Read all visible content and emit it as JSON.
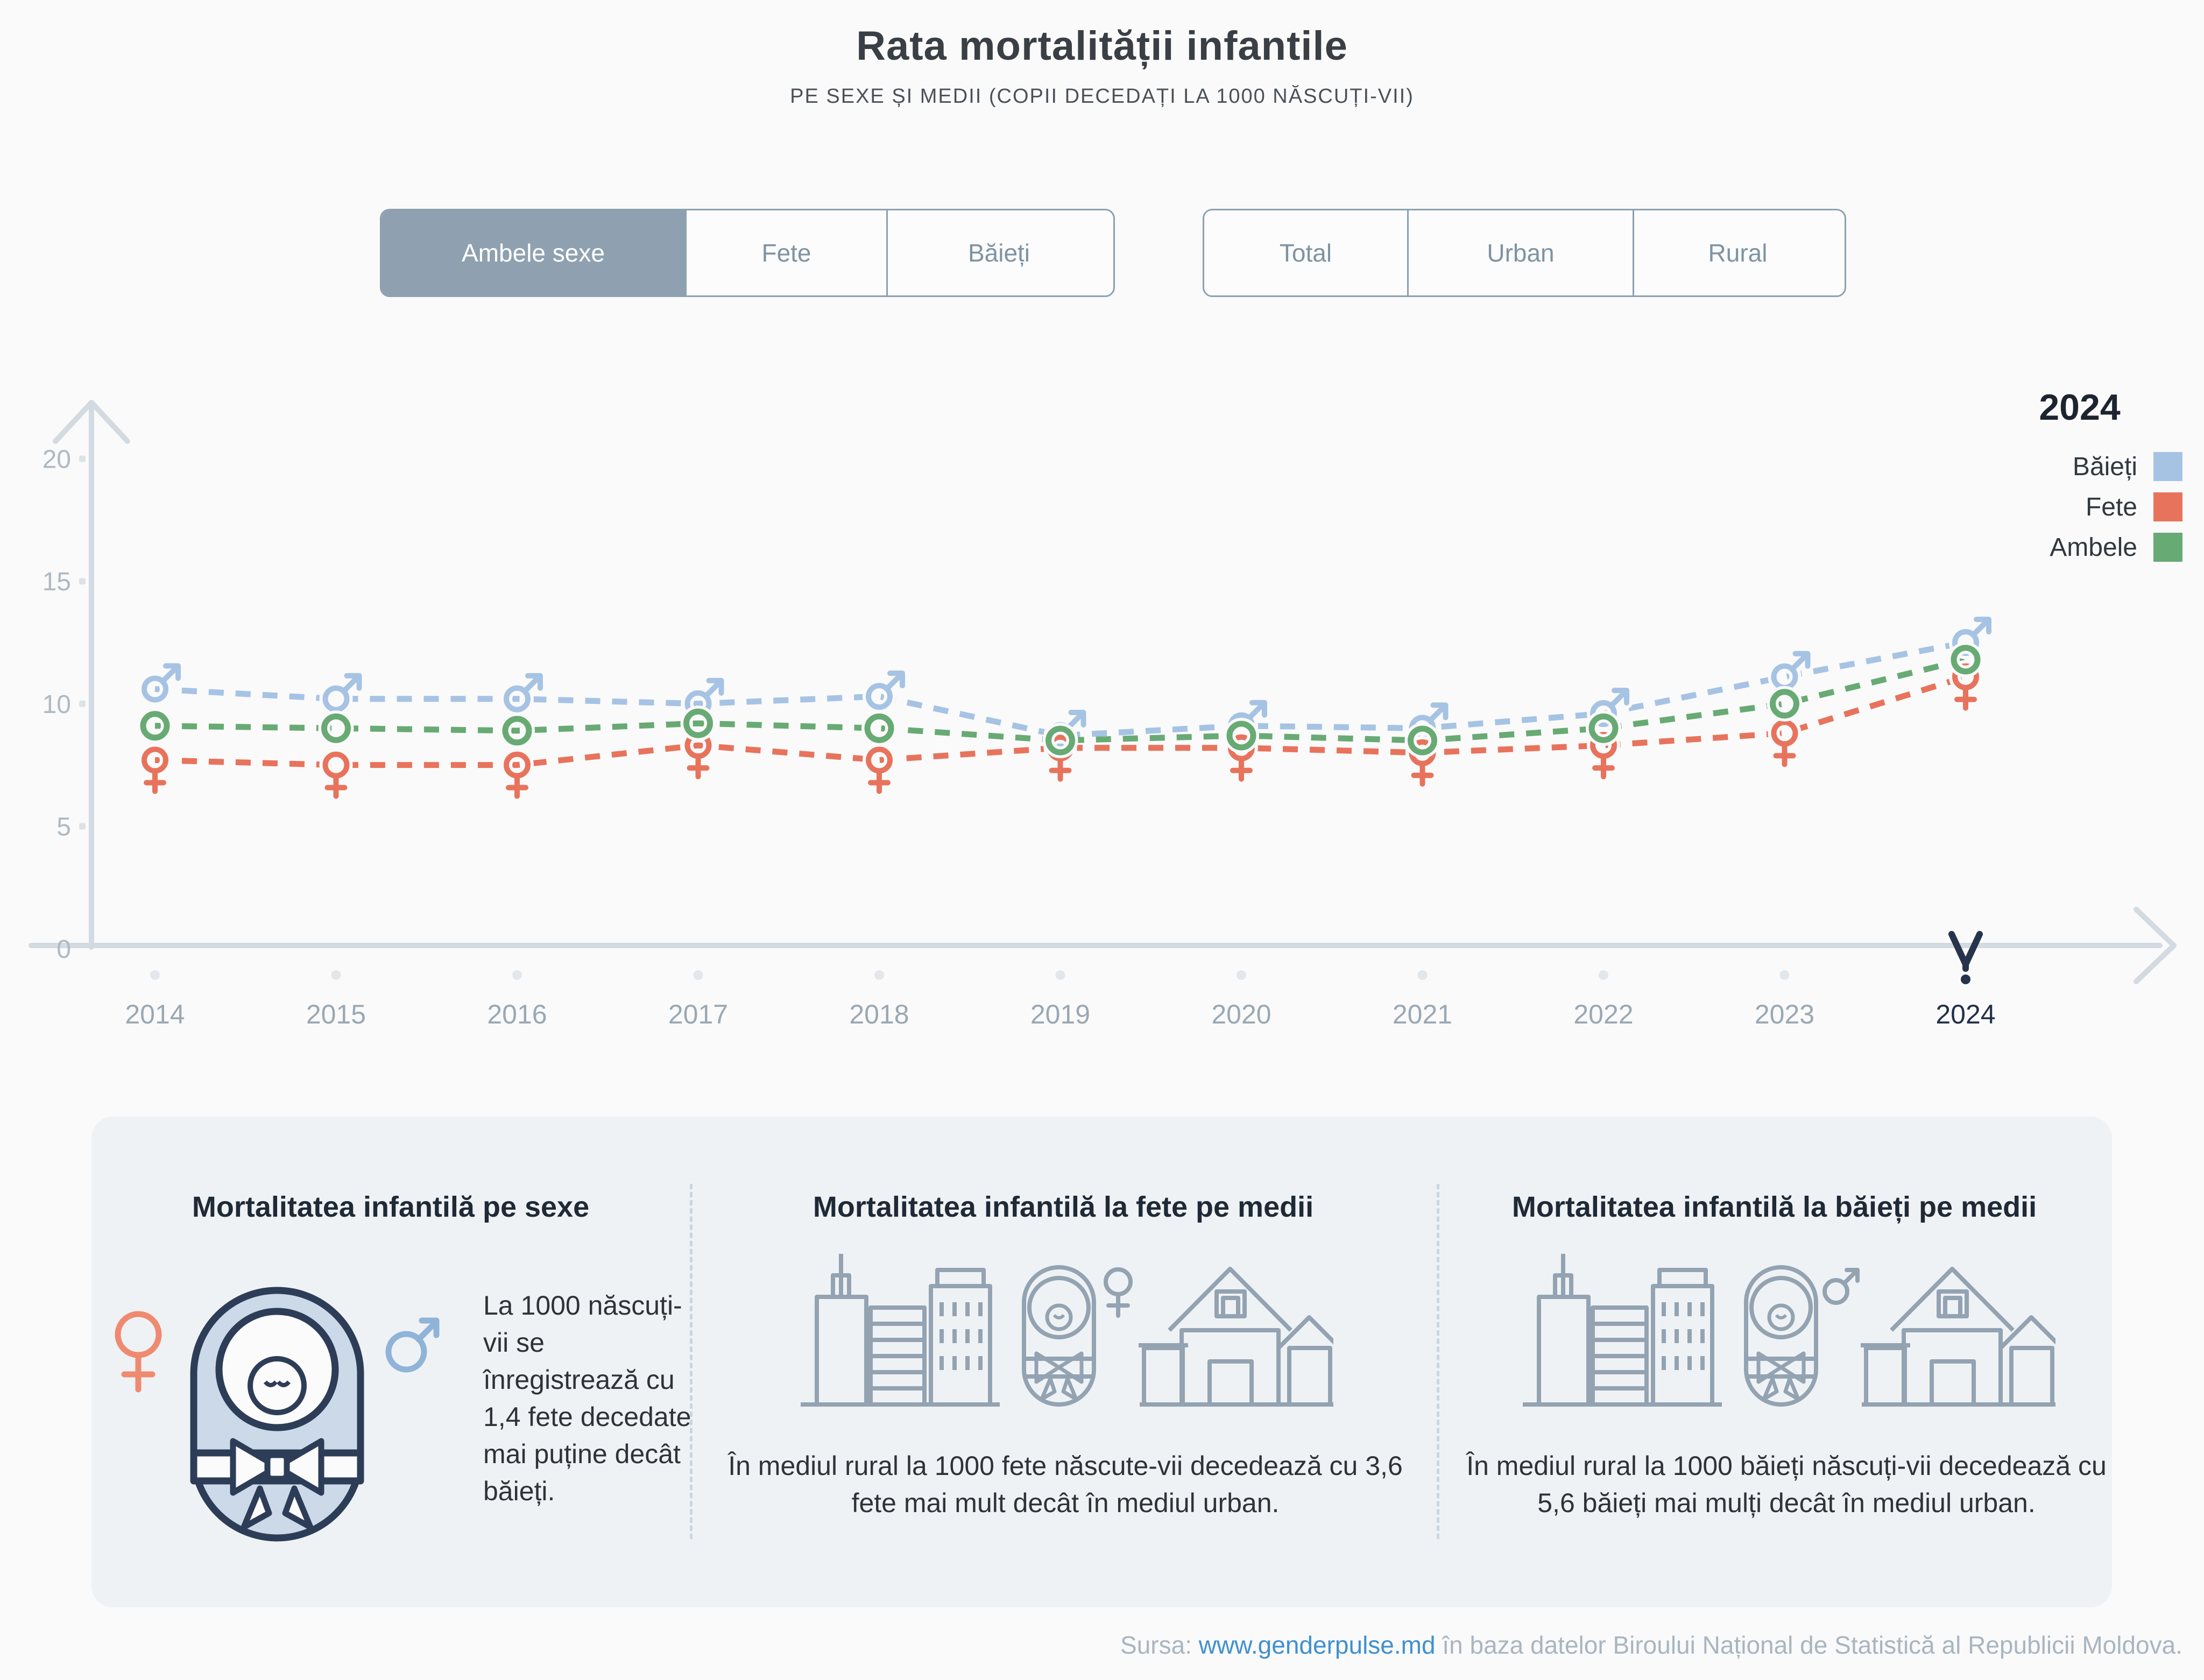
{
  "title": "Rata mortalității infantile",
  "subtitle": "PE SEXE ȘI MEDII (COPII DECEDAȚI LA 1000 NĂSCUȚI-VII)",
  "filters": {
    "sex": {
      "options": [
        "Ambele sexe",
        "Fete",
        "Băieți"
      ],
      "selected": "Ambele sexe"
    },
    "medium": {
      "options": [
        "Total",
        "Urban",
        "Rural"
      ],
      "selected": ""
    }
  },
  "legend": {
    "year": "2024",
    "items": [
      {
        "label": "Băieți",
        "color": "#a6c3e4"
      },
      {
        "label": "Fete",
        "color": "#e8735c"
      },
      {
        "label": "Ambele",
        "color": "#68aa74"
      }
    ]
  },
  "chart_data": {
    "type": "line",
    "title": "Rata mortalității infantile",
    "xlabel": "",
    "ylabel": "copii decedați la 1000 născuți-vii",
    "x": [
      2014,
      2015,
      2016,
      2017,
      2018,
      2019,
      2020,
      2021,
      2022,
      2023,
      2024
    ],
    "series": [
      {
        "name": "Băieți",
        "marker": "male",
        "color": "#a6c3e4",
        "values": [
          10.6,
          10.2,
          10.2,
          10.0,
          10.3,
          8.7,
          9.1,
          9.0,
          9.6,
          11.1,
          12.5
        ]
      },
      {
        "name": "Fete",
        "marker": "female",
        "color": "#e8735c",
        "values": [
          7.7,
          7.5,
          7.5,
          8.3,
          7.7,
          8.2,
          8.2,
          8.0,
          8.3,
          8.8,
          11.1
        ]
      },
      {
        "name": "Ambele",
        "marker": "circle",
        "color": "#68aa74",
        "values": [
          9.1,
          9.0,
          8.9,
          9.2,
          9.0,
          8.5,
          8.7,
          8.5,
          9.0,
          10.0,
          11.8
        ]
      }
    ],
    "ylim": [
      0,
      20
    ],
    "yticks": [
      0,
      5,
      10,
      15,
      20
    ],
    "highlight_year": 2024,
    "grid": false,
    "legend_position": "right",
    "line_style": "dashed"
  },
  "cards": [
    {
      "title": "Mortalitatea infantilă pe sexe",
      "text": "La 1000 născuți-vii se înregistrează cu 1,4 fete decedate mai puține decât băieți."
    },
    {
      "title": "Mortalitatea infantilă la fete pe medii",
      "text": "În mediul rural la 1000 fete născute-vii decedează cu 3,6 fete mai mult decât în mediul urban."
    },
    {
      "title": "Mortalitatea infantilă la băieți pe medii",
      "text": "În mediul rural la 1000 băieți născuți-vii decedează cu 5,6 băieți mai mulți decât în mediul urban."
    }
  ],
  "footer": {
    "prefix": "Sursa: ",
    "link": "www.genderpulse.md",
    "suffix": " în baza datelor Biroului Național de Statistică al Republicii Moldova."
  }
}
